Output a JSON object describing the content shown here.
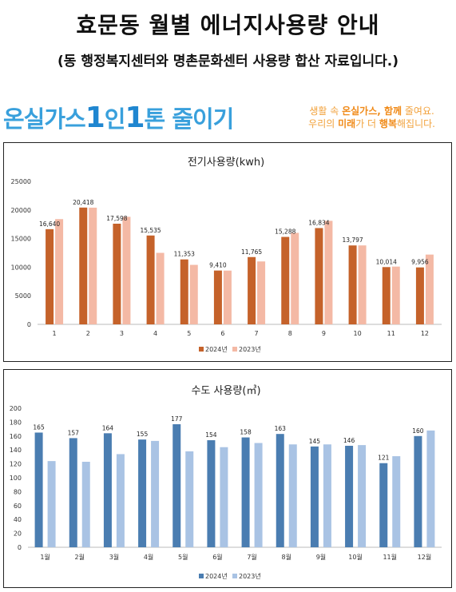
{
  "header": {
    "title": "효문동 월별 에너지사용량 안내",
    "subtitle": "(동 행정복지센터와 명촌문화센터 사용량 합산 자료입니다.)"
  },
  "banner": {
    "slogan_part1": "온실가스",
    "slogan_num1": "1",
    "slogan_part2": "인",
    "slogan_num2": "1",
    "slogan_part3": "톤 줄이기",
    "tagline_line1_pre": "생활 속 ",
    "tagline_line1_bold": "온실가스, 함께",
    "tagline_line1_post": " 줄여요.",
    "tagline_line2_pre": "우리의 ",
    "tagline_line2_bold1": "미래",
    "tagline_line2_mid": "가 더 ",
    "tagline_line2_bold2": "행복",
    "tagline_line2_post": "해집니다."
  },
  "chart_data": [
    {
      "type": "bar",
      "title": "전기사용량(kwh)",
      "categories": [
        "1",
        "2",
        "3",
        "4",
        "5",
        "6",
        "7",
        "8",
        "9",
        "10",
        "11",
        "12"
      ],
      "ylim": [
        0,
        25000
      ],
      "yticks": [
        "0",
        "5000",
        "10000",
        "15000",
        "20000",
        "25000"
      ],
      "legend_position": "bottom",
      "grid": false,
      "series": [
        {
          "name": "2024년",
          "color": "#c5622a",
          "values": [
            16640,
            20418,
            17598,
            15535,
            11353,
            9410,
            11765,
            15288,
            16834,
            13797,
            10014,
            9956
          ]
        },
        {
          "name": "2023년",
          "color": "#f4b9a5",
          "values": [
            18400,
            20400,
            18800,
            12500,
            10400,
            9400,
            11000,
            16000,
            18100,
            13800,
            10100,
            12200
          ]
        }
      ],
      "data_labels": [
        "16,640",
        "20,418",
        "17,598",
        "15,535",
        "11,353",
        "9,410",
        "11,765",
        "15,288",
        "16,834",
        "13,797",
        "10,014",
        "9,956"
      ]
    },
    {
      "type": "bar",
      "title": "수도 사용량(㎥)",
      "categories": [
        "1월",
        "2월",
        "3월",
        "4월",
        "5월",
        "6월",
        "7월",
        "8월",
        "9월",
        "10월",
        "11월",
        "12월"
      ],
      "ylim": [
        0,
        200
      ],
      "yticks": [
        "0",
        "20",
        "40",
        "60",
        "80",
        "100",
        "120",
        "140",
        "160",
        "180",
        "200"
      ],
      "legend_position": "bottom",
      "grid": false,
      "series": [
        {
          "name": "2024년",
          "color": "#4a7db1",
          "values": [
            165,
            157,
            164,
            155,
            177,
            154,
            158,
            163,
            145,
            146,
            121,
            160
          ]
        },
        {
          "name": "2023년",
          "color": "#a9c3e4",
          "values": [
            124,
            123,
            134,
            153,
            138,
            144,
            150,
            148,
            148,
            147,
            131,
            168
          ]
        }
      ],
      "data_labels": [
        "165",
        "157",
        "164",
        "155",
        "177",
        "154",
        "158",
        "163",
        "145",
        "146",
        "121",
        "160"
      ]
    }
  ]
}
